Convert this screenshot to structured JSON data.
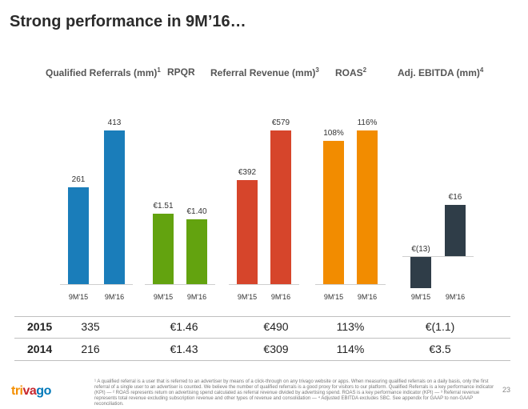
{
  "title": "Strong performance in 9M’16…",
  "chart_data": [
    {
      "type": "bar",
      "title": "Qualified Referrals (mm)",
      "footnote_ref": "1",
      "categories": [
        "9M'15",
        "9M'16"
      ],
      "values": [
        261,
        413
      ],
      "labels": [
        "261",
        "413"
      ],
      "ylim": [
        0,
        500
      ],
      "color": "#1a7dba"
    },
    {
      "type": "bar",
      "title": "RPQR",
      "footnote_ref": "",
      "categories": [
        "9M'15",
        "9M'16"
      ],
      "values": [
        1.51,
        1.4
      ],
      "labels": [
        "€1.51",
        "€1.40"
      ],
      "ylim": [
        0,
        4.0
      ],
      "color": "#63a30f"
    },
    {
      "type": "bar",
      "title": "Referral Revenue (mm)",
      "footnote_ref": "3",
      "categories": [
        "9M'15",
        "9M'16"
      ],
      "values": [
        392,
        579
      ],
      "labels": [
        "€392",
        "€579"
      ],
      "ylim": [
        0,
        700
      ],
      "color": "#d6452b"
    },
    {
      "type": "bar",
      "title": "ROAS",
      "footnote_ref": "2",
      "categories": [
        "9M'15",
        "9M'16"
      ],
      "values": [
        108,
        116
      ],
      "labels": [
        "108%",
        "116%"
      ],
      "ylim": [
        0,
        140
      ],
      "color": "#f28c00"
    },
    {
      "type": "bar",
      "title": "Adj. EBITDA (mm)",
      "footnote_ref": "4",
      "categories": [
        "9M'15",
        "9M'16"
      ],
      "values": [
        -13,
        16
      ],
      "labels": [
        "€(13)",
        "€16"
      ],
      "ylim": [
        -13,
        16
      ],
      "color": "#2f3d48"
    }
  ],
  "table": {
    "rows": [
      {
        "year": "2015",
        "values": [
          "335",
          "€1.46",
          "€490",
          "113%",
          "€(1.1)"
        ]
      },
      {
        "year": "2014",
        "values": [
          "216",
          "€1.43",
          "€309",
          "114%",
          "€3.5"
        ]
      }
    ]
  },
  "brand": {
    "logo_parts": [
      "tri",
      "va",
      "go"
    ],
    "logo_colors": [
      "#f48f00",
      "#c6262e",
      "#0078b9"
    ]
  },
  "page_number": "23",
  "footnote": "¹ A qualified referral is a user that is referred to an advertiser by means of a click-through on any trivago website or apps. When measuring qualified referrals on a daily basis, only the first referral of a single user to an advertiser is counted. We believe the number of qualified referrals is a good proxy for visitors to our platform. Qualified Referrals is a key performance indicator (KPI) — ² ROAS represents return on advertising spend calculated as referral revenue divided by advertising spend. ROAS is a key performance indicator (KPI) — ³ Referral revenue represents total revenue excluding subscription revenue and other types of revenue and consolidation — ⁴ Adjusted EBITDA excludes SBC. See appendix for GAAP to non-GAAP reconciliation."
}
